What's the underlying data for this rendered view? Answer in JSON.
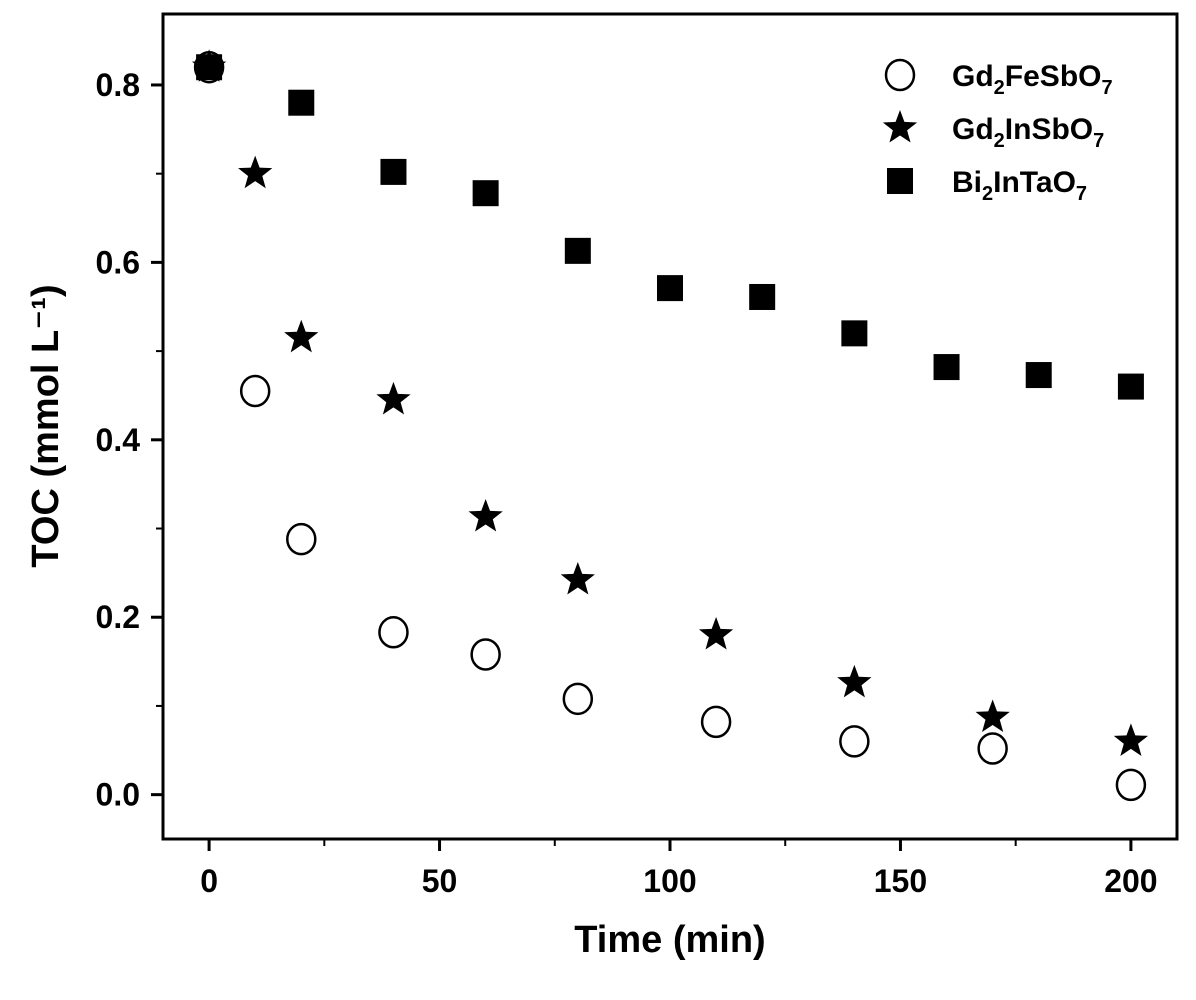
{
  "chart_data": {
    "type": "scatter",
    "xlabel": "Time (min)",
    "ylabel": "TOC (mmol L⁻¹)",
    "xlim": [
      -10,
      210
    ],
    "ylim": [
      -0.05,
      0.88
    ],
    "xticks": [
      0,
      50,
      100,
      150,
      200
    ],
    "xtick_labels": [
      "0",
      "50",
      "100",
      "150",
      "200"
    ],
    "yticks": [
      0.0,
      0.2,
      0.4,
      0.6,
      0.8
    ],
    "ytick_labels": [
      "0.0",
      "0.2",
      "0.4",
      "0.6",
      "0.8"
    ],
    "grid": false,
    "legend_position": "top-right",
    "series": [
      {
        "name": "Gd2FeSbO7",
        "label_parts": [
          "Gd",
          "2",
          "FeSbO",
          "7"
        ],
        "marker": "open-circle",
        "x": [
          0,
          10,
          20,
          40,
          60,
          80,
          110,
          140,
          170,
          200
        ],
        "y": [
          0.82,
          0.455,
          0.288,
          0.183,
          0.158,
          0.108,
          0.082,
          0.06,
          0.052,
          0.011
        ]
      },
      {
        "name": "Gd2InSbO7",
        "label_parts": [
          "Gd",
          "2",
          "InSbO",
          "7"
        ],
        "marker": "star",
        "x": [
          0,
          10,
          20,
          40,
          60,
          80,
          110,
          140,
          170,
          200
        ],
        "y": [
          0.82,
          0.7,
          0.515,
          0.445,
          0.313,
          0.242,
          0.18,
          0.126,
          0.087,
          0.06
        ]
      },
      {
        "name": "Bi2InTaO7",
        "label_parts": [
          "Bi",
          "2",
          "InTaO",
          "7"
        ],
        "marker": "filled-square",
        "x": [
          0,
          20,
          40,
          60,
          80,
          100,
          120,
          140,
          160,
          180,
          200
        ],
        "y": [
          0.82,
          0.78,
          0.702,
          0.678,
          0.613,
          0.571,
          0.561,
          0.52,
          0.482,
          0.473,
          0.46
        ]
      }
    ]
  }
}
